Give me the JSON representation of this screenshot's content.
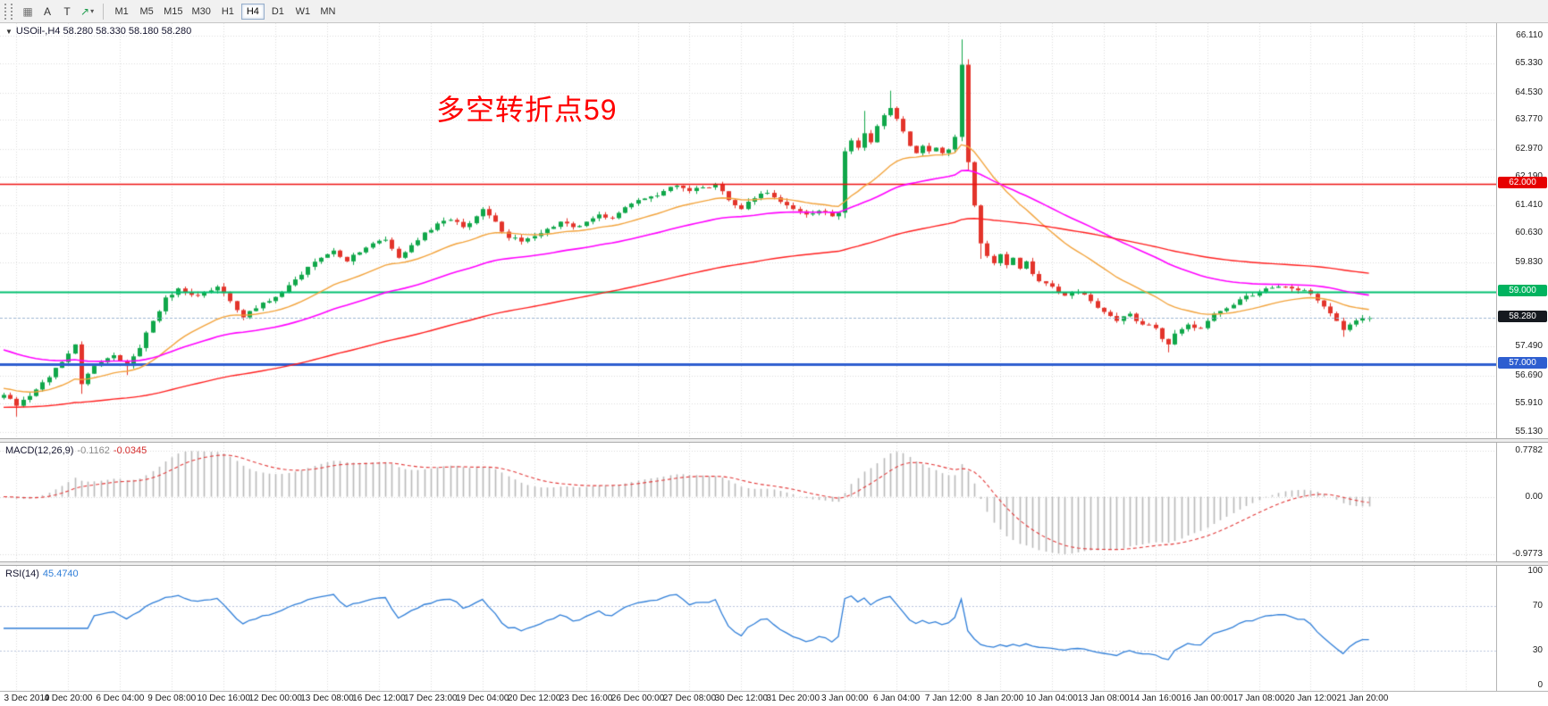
{
  "toolbar": {
    "icon_buttons": [
      {
        "name": "charts-grid-button",
        "glyph": "▦",
        "color": "#6f6f6f"
      },
      {
        "name": "auto-scroll-button",
        "glyph": "A",
        "color": "#333333"
      },
      {
        "name": "chart-shift-button",
        "glyph": "T",
        "color": "#333333"
      },
      {
        "name": "arrow-tool-button",
        "glyph": "↗",
        "color": "#1f9d4d",
        "caret": "▾"
      }
    ],
    "timeframes": [
      "M1",
      "M5",
      "M15",
      "M30",
      "H1",
      "H4",
      "D1",
      "W1",
      "MN"
    ],
    "selected_timeframe": "H4"
  },
  "icons": {
    "expand": "▼"
  },
  "chart": {
    "title": "USOil-,H4 58.280 58.330 58.180 58.280",
    "annotation_text": "多空转折点59",
    "annotation_color": "#ff0000"
  },
  "chart_data": {
    "type": "candlestick",
    "symbol": "USOil-",
    "timeframe": "H4",
    "n_candles": 212,
    "noise_seed": 42,
    "noise_amp": 0.12,
    "wick_amp": 0.1,
    "price_axis_labels": [
      "66.110",
      "65.330",
      "64.530",
      "63.770",
      "62.970",
      "62.190",
      "61.410",
      "60.630",
      "59.830",
      "57.490",
      "56.690",
      "55.910",
      "55.130"
    ],
    "price_range": [
      54.95,
      66.45
    ],
    "anchors": [
      [
        0,
        56.15
      ],
      [
        2,
        55.85
      ],
      [
        5,
        56.3
      ],
      [
        8,
        56.9
      ],
      [
        11,
        57.55
      ],
      [
        12,
        56.45
      ],
      [
        14,
        56.95
      ],
      [
        17,
        57.25
      ],
      [
        19,
        56.95
      ],
      [
        21,
        57.45
      ],
      [
        23,
        58.2
      ],
      [
        25,
        58.85
      ],
      [
        27,
        59.1
      ],
      [
        30,
        58.9
      ],
      [
        33,
        59.15
      ],
      [
        35,
        58.75
      ],
      [
        37,
        58.3
      ],
      [
        39,
        58.55
      ],
      [
        41,
        58.75
      ],
      [
        43,
        59.0
      ],
      [
        45,
        59.35
      ],
      [
        47,
        59.7
      ],
      [
        49,
        59.95
      ],
      [
        51,
        60.15
      ],
      [
        53,
        59.85
      ],
      [
        55,
        60.1
      ],
      [
        57,
        60.35
      ],
      [
        59,
        60.45
      ],
      [
        61,
        59.95
      ],
      [
        63,
        60.3
      ],
      [
        65,
        60.65
      ],
      [
        67,
        60.9
      ],
      [
        69,
        61.0
      ],
      [
        71,
        60.8
      ],
      [
        73,
        61.1
      ],
      [
        74,
        61.3
      ],
      [
        76,
        60.95
      ],
      [
        78,
        60.5
      ],
      [
        80,
        60.4
      ],
      [
        82,
        60.55
      ],
      [
        84,
        60.75
      ],
      [
        86,
        60.95
      ],
      [
        88,
        60.8
      ],
      [
        90,
        60.95
      ],
      [
        92,
        61.15
      ],
      [
        94,
        61.05
      ],
      [
        96,
        61.35
      ],
      [
        98,
        61.55
      ],
      [
        100,
        61.65
      ],
      [
        102,
        61.8
      ],
      [
        104,
        61.95
      ],
      [
        106,
        61.8
      ],
      [
        108,
        61.9
      ],
      [
        110,
        62.0
      ],
      [
        112,
        61.55
      ],
      [
        114,
        61.3
      ],
      [
        116,
        61.6
      ],
      [
        118,
        61.75
      ],
      [
        120,
        61.5
      ],
      [
        122,
        61.3
      ],
      [
        124,
        61.15
      ],
      [
        126,
        61.25
      ],
      [
        128,
        61.1
      ],
      [
        129,
        61.2
      ],
      [
        130,
        62.9
      ],
      [
        131,
        63.2
      ],
      [
        132,
        63.0
      ],
      [
        133,
        63.4
      ],
      [
        134,
        63.15
      ],
      [
        135,
        63.6
      ],
      [
        136,
        63.9
      ],
      [
        137,
        64.1
      ],
      [
        138,
        63.8
      ],
      [
        139,
        63.45
      ],
      [
        140,
        63.05
      ],
      [
        141,
        62.85
      ],
      [
        142,
        63.05
      ],
      [
        143,
        62.9
      ],
      [
        144,
        63.0
      ],
      [
        145,
        62.85
      ],
      [
        146,
        62.95
      ],
      [
        147,
        63.3
      ],
      [
        148,
        65.3
      ],
      [
        149,
        62.6
      ],
      [
        150,
        61.4
      ],
      [
        151,
        60.35
      ],
      [
        152,
        60.0
      ],
      [
        153,
        59.8
      ],
      [
        154,
        60.05
      ],
      [
        155,
        59.75
      ],
      [
        156,
        59.95
      ],
      [
        157,
        59.65
      ],
      [
        158,
        59.85
      ],
      [
        159,
        59.5
      ],
      [
        160,
        59.3
      ],
      [
        162,
        59.15
      ],
      [
        164,
        58.9
      ],
      [
        166,
        59.0
      ],
      [
        168,
        58.75
      ],
      [
        170,
        58.45
      ],
      [
        172,
        58.2
      ],
      [
        174,
        58.4
      ],
      [
        176,
        58.1
      ],
      [
        178,
        58.0
      ],
      [
        179,
        57.7
      ],
      [
        180,
        57.55
      ],
      [
        181,
        57.85
      ],
      [
        183,
        58.1
      ],
      [
        185,
        58.0
      ],
      [
        187,
        58.4
      ],
      [
        189,
        58.55
      ],
      [
        191,
        58.8
      ],
      [
        193,
        58.9
      ],
      [
        195,
        59.1
      ],
      [
        197,
        59.15
      ],
      [
        199,
        59.1
      ],
      [
        201,
        59.05
      ],
      [
        202,
        58.95
      ],
      [
        204,
        58.6
      ],
      [
        206,
        58.2
      ],
      [
        207,
        57.95
      ],
      [
        208,
        58.1
      ],
      [
        210,
        58.28
      ]
    ],
    "wick_overrides": {
      "2": {
        "low": 55.55
      },
      "12": {
        "low": 56.18
      },
      "19": {
        "low": 56.7
      },
      "130": {
        "low": 61.05,
        "high": 63.0
      },
      "133": {
        "high": 64.02
      },
      "137": {
        "high": 64.58
      },
      "148": {
        "high": 66.0,
        "low": 63.18
      },
      "149": {
        "high": 65.45,
        "low": 62.35
      },
      "151": {
        "low": 59.92
      },
      "180": {
        "low": 57.33
      },
      "207": {
        "low": 57.76
      }
    },
    "last_candle": {
      "open": 58.28,
      "high": 58.33,
      "low": 58.18,
      "close": 58.28
    },
    "colors": {
      "up": "#10a74a",
      "down": "#e3342b"
    },
    "overlays": [
      {
        "name": "ma-fast-orange",
        "period": 21,
        "seed_value": 56.35,
        "color": "#f2a33c",
        "width": 1.4
      },
      {
        "name": "ma-mid-magenta",
        "period": 50,
        "seed_value": 57.45,
        "color": "#ff00ff",
        "width": 1.6
      },
      {
        "name": "ma-slow-red",
        "period": 120,
        "seed_value": 55.8,
        "color": "#ff1f1f",
        "width": 1.4
      }
    ],
    "hlines": [
      {
        "value": 62.0,
        "label": "62.000",
        "color": "#ee1111",
        "width": 1.4,
        "dash": [],
        "badge_bg": "#e60000"
      },
      {
        "value": 59.0,
        "label": "59.000",
        "color": "#00bf6f",
        "width": 2,
        "dash": [],
        "badge_bg": "#00b35f"
      },
      {
        "value": 58.28,
        "label": "58.280",
        "color": "#9db6d2",
        "width": 1,
        "dash": [
          3,
          2
        ],
        "badge_bg": "#15191f"
      },
      {
        "value": 57.0,
        "label": "57.000",
        "color": "#2e5ed0",
        "width": 3,
        "dash": [],
        "badge_bg": "#2e5ed0"
      }
    ],
    "time_labels": [
      {
        "index": 2,
        "label": "3 Dec 2019"
      },
      {
        "index": 10,
        "label": "4 Dec 20:00"
      },
      {
        "index": 18,
        "label": "6 Dec 04:00"
      },
      {
        "index": 26,
        "label": "9 Dec 08:00"
      },
      {
        "index": 34,
        "label": "10 Dec 16:00"
      },
      {
        "index": 42,
        "label": "12 Dec 00:00"
      },
      {
        "index": 50,
        "label": "13 Dec 08:00"
      },
      {
        "index": 58,
        "label": "16 Dec 12:00"
      },
      {
        "index": 66,
        "label": "17 Dec 23:00"
      },
      {
        "index": 74,
        "label": "19 Dec 04:00"
      },
      {
        "index": 82,
        "label": "20 Dec 12:00"
      },
      {
        "index": 90,
        "label": "23 Dec 16:00"
      },
      {
        "index": 98,
        "label": "26 Dec 00:00"
      },
      {
        "index": 106,
        "label": "27 Dec 08:00"
      },
      {
        "index": 114,
        "label": "30 Dec 12:00"
      },
      {
        "index": 122,
        "label": "31 Dec 20:00"
      },
      {
        "index": 130,
        "label": "3 Jan 00:00"
      },
      {
        "index": 138,
        "label": "6 Jan 04:00"
      },
      {
        "index": 146,
        "label": "7 Jan 12:00"
      },
      {
        "index": 154,
        "label": "8 Jan 20:00"
      },
      {
        "index": 162,
        "label": "10 Jan 04:00"
      },
      {
        "index": 170,
        "label": "13 Jan 08:00"
      },
      {
        "index": 178,
        "label": "14 Jan 16:00"
      },
      {
        "index": 186,
        "label": "16 Jan 00:00"
      },
      {
        "index": 194,
        "label": "17 Jan 08:00"
      },
      {
        "index": 202,
        "label": "20 Jan 12:00"
      },
      {
        "index": 210,
        "label": "21 Jan 20:00"
      }
    ],
    "macd": {
      "name": "MACD(12,26,9)",
      "main_value": "-0.1162",
      "signal_value": "-0.0345",
      "fast": 12,
      "slow": 26,
      "signal": 9,
      "axis_labels": [
        "0.7782",
        "0.00",
        "-0.9773"
      ],
      "axis_values": [
        0.7782,
        0,
        -0.9773
      ],
      "hist_color": "#b9b9b9",
      "signal_color": "#e23a3a"
    },
    "rsi": {
      "name": "RSI(14)",
      "value": "45.4740",
      "period": 14,
      "axis_labels": [
        "100",
        "70",
        "30",
        "0"
      ],
      "axis_values": [
        100,
        70,
        30,
        0
      ],
      "levels": [
        70,
        30
      ],
      "color": "#2f7ed8"
    }
  }
}
